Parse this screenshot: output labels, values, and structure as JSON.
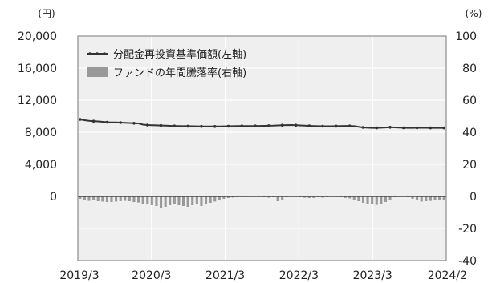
{
  "chart_data": {
    "type": "line",
    "title": "",
    "left_unit": "(円)",
    "right_unit": "(%)",
    "left_ticks": [
      "20,000",
      "16,000",
      "12,000",
      "8,000",
      "4,000",
      "0"
    ],
    "right_ticks": [
      "100",
      "80",
      "60",
      "40",
      "20",
      "0",
      "-20",
      "-40"
    ],
    "x_ticks": [
      "2019/3",
      "2020/3",
      "2021/3",
      "2022/3",
      "2023/3",
      "2024/2"
    ],
    "ylim_left": [
      -8000,
      20000
    ],
    "ylim_right": [
      -40,
      100
    ],
    "grid": true,
    "legend_position": "top-left",
    "colors": {
      "nav_line": "#333333",
      "drawdown_bar": "#999999",
      "plot_bg": "#efefef"
    },
    "series": [
      {
        "name": "分配金再投資基準価額(左軸)",
        "axis": "left",
        "kind": "line",
        "values": [
          9600,
          9500,
          9420,
          9380,
          9350,
          9300,
          9250,
          9230,
          9220,
          9200,
          9180,
          9150,
          9120,
          9100,
          8950,
          8900,
          8880,
          8860,
          8840,
          8820,
          8800,
          8780,
          8770,
          8760,
          8760,
          8750,
          8740,
          8730,
          8720,
          8720,
          8720,
          8730,
          8740,
          8750,
          8760,
          8770,
          8780,
          8780,
          8780,
          8780,
          8790,
          8800,
          8810,
          8820,
          8850,
          8880,
          8890,
          8900,
          8880,
          8850,
          8820,
          8800,
          8780,
          8760,
          8750,
          8750,
          8750,
          8760,
          8780,
          8790,
          8780,
          8760,
          8680,
          8600,
          8560,
          8540,
          8540,
          8560,
          8590,
          8620,
          8600,
          8570,
          8550,
          8540,
          8540,
          8550,
          8550,
          8550,
          8540,
          8540,
          8540,
          8540
        ]
      },
      {
        "name": "ファンドの年間騰落率(右軸)",
        "axis": "right",
        "kind": "bar",
        "values": [
          -1.5,
          -2.5,
          -2.8,
          -2.5,
          -3,
          -3.2,
          -3.5,
          -3.5,
          -3.2,
          -3,
          -2.8,
          -3,
          -3.5,
          -3.8,
          -4.5,
          -5,
          -5.5,
          -6,
          -7,
          -6.5,
          -5.5,
          -5,
          -5.5,
          -6,
          -6.5,
          -5.5,
          -4.5,
          -6,
          -5,
          -4,
          -3.2,
          -2.5,
          -1.5,
          -1,
          -0.7,
          -0.5,
          -0.3,
          -0.3,
          -0.2,
          -0.2,
          -0.3,
          -0.5,
          -0.8,
          -0.5,
          -3,
          -2,
          -0.5,
          0.2,
          -0.3,
          -0.5,
          -0.8,
          -1,
          -1,
          -0.5,
          -0.8,
          -0.5,
          -0.2,
          -0.3,
          -0.5,
          -1,
          -1.2,
          -2,
          -3,
          -4,
          -4.5,
          -5,
          -5.3,
          -5,
          -3.5,
          -2,
          -0.5,
          -0.3,
          -0.2,
          -0.5,
          -1.5,
          -2.5,
          -3.2,
          -3,
          -2.8,
          -2.5,
          -2.5,
          -2.5
        ]
      }
    ]
  }
}
